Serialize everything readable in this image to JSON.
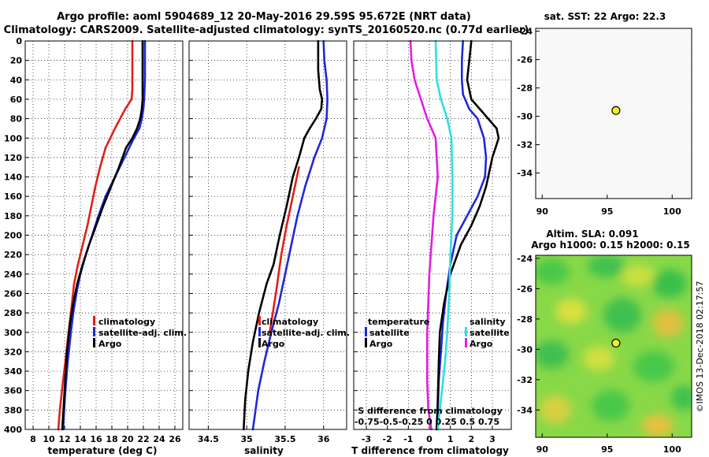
{
  "header": {
    "line1": "Argo profile: aoml 5904689_12 20-May-2016 29.59S 95.672E (NRT data)",
    "line2": "Climatology: CARS2009. Satellite-adjusted climatology: synTS_20160520.nc (0.77d earlier)"
  },
  "watermark": "©IMOS 13-Dec-2018 02:17:57",
  "colors": {
    "climatology": "#e0201a",
    "satellite": "#1f28d8",
    "argo": "#000000",
    "sal_satellite": "#2ee0e0",
    "sal_argo": "#e01fe0"
  },
  "chart_data": [
    {
      "type": "line",
      "panel": "temperature",
      "xlabel": "temperature (deg C)",
      "ylabel": "depth",
      "xlim": [
        7,
        27
      ],
      "ylim": [
        0,
        400
      ],
      "xticks": [
        8,
        10,
        12,
        14,
        16,
        18,
        20,
        22,
        24,
        26
      ],
      "yticks": [
        0,
        20,
        40,
        60,
        80,
        100,
        120,
        140,
        160,
        180,
        200,
        220,
        240,
        260,
        280,
        300,
        320,
        340,
        360,
        380,
        400
      ],
      "grid": true,
      "legend": [
        "climatology",
        "satellite-adj. clim.",
        "Argo"
      ],
      "series": [
        {
          "name": "climatology",
          "color_key": "climatology",
          "x": [
            20.6,
            20.6,
            20.6,
            20.6,
            20.5,
            19.7,
            18.4,
            17.2,
            16.5,
            15.9,
            15.4,
            14.9,
            14.3,
            13.7,
            13.2,
            12.8,
            12.5,
            12.1,
            11.8,
            11.4,
            11.2
          ],
          "y": [
            0,
            20,
            40,
            50,
            60,
            70,
            90,
            110,
            130,
            150,
            170,
            190,
            210,
            230,
            250,
            280,
            300,
            330,
            350,
            380,
            400
          ]
        },
        {
          "name": "satellite-adj. clim.",
          "color_key": "satellite",
          "x": [
            22.2,
            22.2,
            22.1,
            22.0,
            21.8,
            21.5,
            20.8,
            19.6,
            18.4,
            17.2,
            16.3,
            15.5,
            14.7,
            14.0,
            13.5,
            13.1,
            12.8,
            12.4,
            12.1,
            11.8
          ],
          "y": [
            0,
            40,
            60,
            70,
            80,
            90,
            100,
            120,
            140,
            160,
            180,
            200,
            220,
            240,
            260,
            280,
            300,
            330,
            360,
            400
          ]
        },
        {
          "name": "Argo",
          "color_key": "argo",
          "x": [
            21.9,
            21.9,
            21.9,
            21.8,
            21.6,
            21.2,
            20.6,
            19.8,
            18.9,
            17.9,
            16.9,
            16.0,
            15.1,
            14.3,
            13.6,
            13.1,
            12.7,
            12.3,
            12.0,
            11.7
          ],
          "y": [
            0,
            40,
            60,
            70,
            80,
            90,
            100,
            110,
            130,
            150,
            170,
            190,
            210,
            230,
            250,
            270,
            290,
            320,
            360,
            400
          ]
        }
      ]
    },
    {
      "type": "line",
      "panel": "salinity",
      "xlabel": "salinity",
      "xlim": [
        34.25,
        36.3
      ],
      "ylim": [
        0,
        400
      ],
      "xticks": [
        34.5,
        35,
        35.5,
        36
      ],
      "xtick_labels": [
        "34.5",
        "35",
        "35.5",
        "36"
      ],
      "grid": true,
      "legend": [
        "climatology",
        "satellite-adj. clim.",
        "Argo"
      ],
      "series": [
        {
          "name": "climatology",
          "color_key": "climatology",
          "x": [
            35.68,
            35.6,
            35.52,
            35.45,
            35.38,
            35.3
          ],
          "y": [
            130,
            160,
            190,
            220,
            260,
            300
          ]
        },
        {
          "name": "satellite-adj. clim.",
          "color_key": "satellite",
          "x": [
            36.0,
            36.01,
            36.04,
            36.05,
            36.04,
            35.98,
            35.88,
            35.76,
            35.66,
            35.58,
            35.5,
            35.42,
            35.32,
            35.23,
            35.15,
            35.08
          ],
          "y": [
            0,
            20,
            40,
            60,
            80,
            100,
            120,
            150,
            180,
            210,
            240,
            270,
            300,
            330,
            360,
            400
          ]
        },
        {
          "name": "Argo",
          "color_key": "argo",
          "x": [
            35.93,
            35.93,
            35.95,
            35.98,
            35.97,
            35.9,
            35.82,
            35.75,
            35.68,
            35.6,
            35.52,
            35.43,
            35.35,
            35.26,
            35.16,
            35.08,
            35.02,
            34.98,
            34.96
          ],
          "y": [
            0,
            30,
            50,
            60,
            70,
            80,
            90,
            100,
            120,
            140,
            170,
            200,
            230,
            250,
            280,
            310,
            340,
            370,
            400
          ]
        }
      ]
    },
    {
      "type": "line",
      "panel": "difference",
      "xlabel": "T difference from climatology",
      "xlabel2": "S difference from climatology",
      "xlim": [
        -3.6,
        3.9
      ],
      "ylim": [
        0,
        400
      ],
      "xticks": [
        -3,
        -2,
        -1,
        0,
        1,
        2,
        3
      ],
      "xtick_labels": [
        "-3",
        "-2",
        "-1",
        "0",
        "1",
        "2",
        "3"
      ],
      "sal_tick_labels": "-0.75-0.5-0.25  0  0.25 0.5 0.75",
      "grid": true,
      "legend_temperature": {
        "title": "temperature",
        "items": [
          "satellite",
          "Argo"
        ]
      },
      "legend_salinity": {
        "title": "salinity",
        "items": [
          "satellite",
          "Argo"
        ]
      },
      "series": [
        {
          "name": "T satellite",
          "color_key": "satellite",
          "x": [
            1.6,
            1.55,
            1.55,
            1.6,
            1.9,
            2.3,
            2.6,
            2.7,
            2.65,
            2.3,
            1.8,
            1.3,
            1.0,
            0.8,
            0.65,
            0.55,
            0.45,
            0.4,
            0.35
          ],
          "y": [
            0,
            20,
            40,
            55,
            70,
            80,
            100,
            120,
            140,
            160,
            180,
            200,
            230,
            260,
            290,
            320,
            350,
            380,
            400
          ]
        },
        {
          "name": "T Argo",
          "color_key": "argo",
          "x": [
            2.0,
            1.9,
            1.8,
            2.0,
            2.6,
            3.2,
            3.3,
            3.0,
            2.8,
            2.7,
            2.4,
            2.0,
            1.5,
            1.0,
            0.7,
            0.5,
            0.45,
            0.4,
            0.35
          ],
          "y": [
            0,
            20,
            40,
            60,
            75,
            90,
            100,
            120,
            140,
            150,
            170,
            190,
            210,
            240,
            270,
            300,
            330,
            370,
            400
          ]
        },
        {
          "name": "S satellite",
          "color_key": "sal_satellite",
          "x": [
            0.3,
            0.35,
            0.55,
            0.85,
            1.05,
            1.1,
            1.1,
            1.0,
            0.95,
            0.85,
            0.75,
            0.6,
            0.5,
            0.45,
            0.4
          ],
          "y": [
            0,
            40,
            60,
            80,
            100,
            140,
            180,
            220,
            260,
            300,
            330,
            360,
            380,
            390,
            400
          ]
        },
        {
          "name": "S Argo",
          "color_key": "sal_argo",
          "x": [
            -0.9,
            -0.85,
            -0.7,
            -0.4,
            -0.1,
            0.3,
            0.4,
            0.2,
            0.0,
            -0.1,
            -0.1,
            -0.05,
            0.1
          ],
          "y": [
            0,
            20,
            40,
            60,
            80,
            100,
            140,
            180,
            240,
            300,
            350,
            380,
            400
          ]
        }
      ]
    },
    {
      "type": "heatmap",
      "panel": "sst_map",
      "title": "sat. SST: 22 Argo: 22.3",
      "xlim": [
        89.5,
        101.5
      ],
      "ylim": [
        -35.8,
        -23.8
      ],
      "xticks": [
        90,
        95,
        100
      ],
      "yticks": [
        -24,
        -26,
        -28,
        -30,
        -32,
        -34
      ],
      "argo_position": {
        "lon": 95.672,
        "lat": -29.59
      }
    },
    {
      "type": "heatmap",
      "panel": "sla_map",
      "title": "Altim. SLA: 0.091",
      "subtitle": "Argo h1000: 0.15 h2000: 0.15",
      "xlim": [
        89.5,
        101.5
      ],
      "ylim": [
        -35.8,
        -23.8
      ],
      "xticks": [
        90,
        95,
        100
      ],
      "yticks": [
        -24,
        -26,
        -28,
        -30,
        -32,
        -34
      ],
      "argo_position": {
        "lon": 95.672,
        "lat": -29.59
      }
    }
  ]
}
